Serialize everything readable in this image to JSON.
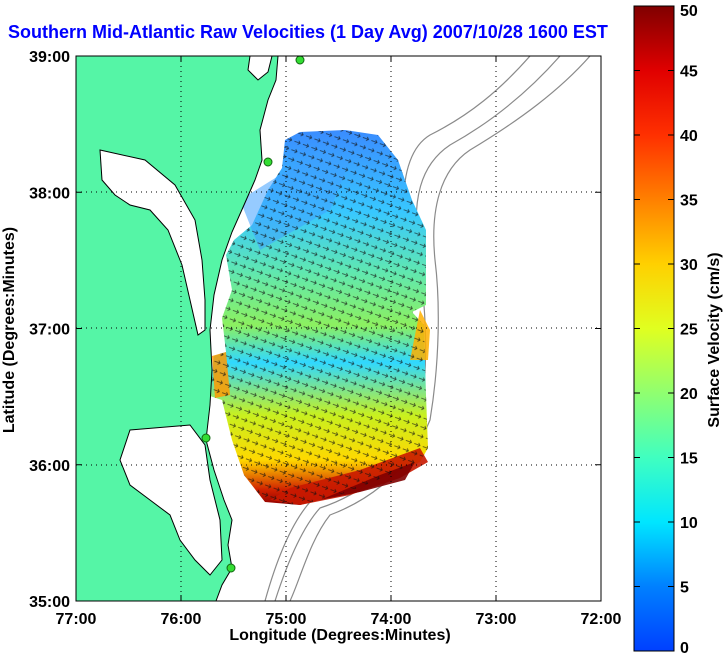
{
  "title": "Southern Mid-Atlantic Raw Velocities (1 Day Avg) 2007/10/28 1600 EST",
  "x_axis": {
    "label": "Longitude (Degrees:Minutes)",
    "ticks": [
      "77:00",
      "76:00",
      "75:00",
      "74:00",
      "73:00",
      "72:00"
    ]
  },
  "y_axis": {
    "label": "Latitude (Degrees:Minutes)",
    "ticks": [
      "39:00",
      "38:00",
      "37:00",
      "36:00",
      "35:00"
    ]
  },
  "colorbar": {
    "label": "Surface Velocity (cm/s)",
    "ticks": [
      "50",
      "45",
      "40",
      "35",
      "30",
      "25",
      "20",
      "15",
      "10",
      "5",
      "0"
    ],
    "range": [
      0,
      50
    ],
    "colormap": "jet"
  },
  "colors": {
    "land": "#55f5a6",
    "coastline": "#000000",
    "bathymetry": "#8a8a8a",
    "title": "#0000ff",
    "station": "#33dd33"
  },
  "map": {
    "lon_range": [
      -77,
      -72
    ],
    "lat_range": [
      35,
      39
    ],
    "grid": "dotted"
  }
}
